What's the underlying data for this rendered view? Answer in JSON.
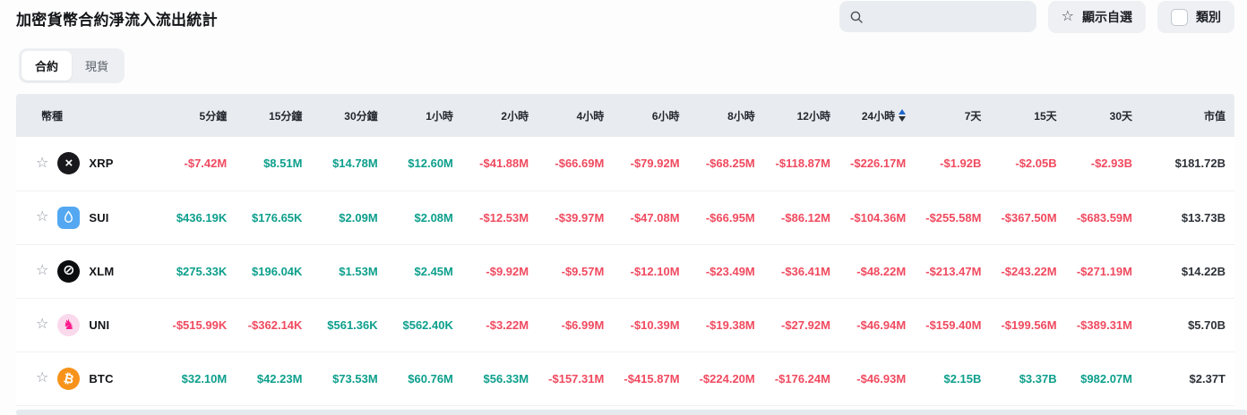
{
  "page": {
    "title": "加密貨幣合約淨流入流出統計"
  },
  "tabs": [
    {
      "label": "合約",
      "active": true
    },
    {
      "label": "現貨",
      "active": false
    }
  ],
  "toolbar": {
    "search_placeholder": "",
    "search_value": "",
    "search_icon": "search-icon",
    "favorites_button": {
      "icon": "star-icon",
      "label": "顯示自選"
    },
    "category_button": {
      "icon": "checkbox",
      "label": "類別",
      "checked": false
    }
  },
  "colors": {
    "positive": "#0d9f8c",
    "negative": "#f04a5f",
    "sort_active": "#1f66cc"
  },
  "table": {
    "columns": [
      "幣種",
      "5分鐘",
      "15分鐘",
      "30分鐘",
      "1小時",
      "2小時",
      "4小時",
      "6小時",
      "8小時",
      "12小時",
      "24小時",
      "7天",
      "15天",
      "30天",
      "市值"
    ],
    "sorted_column": "24小時",
    "sorted_column_index": 10,
    "rows": [
      {
        "symbol": "XRP",
        "logo": {
          "icon": "xrp-logo-icon",
          "bg": "#19191d",
          "shape": "circle"
        },
        "values": [
          "-$7.42M",
          "$8.51M",
          "$14.78M",
          "$12.60M",
          "-$41.88M",
          "-$66.69M",
          "-$79.92M",
          "-$68.25M",
          "-$118.87M",
          "-$226.17M",
          "-$1.92B",
          "-$2.05B",
          "-$2.93B"
        ],
        "market_cap": "$181.72B"
      },
      {
        "symbol": "SUI",
        "logo": {
          "icon": "sui-logo-icon",
          "bg": "#54a8f2",
          "shape": "square"
        },
        "values": [
          "$436.19K",
          "$176.65K",
          "$2.09M",
          "$2.08M",
          "-$12.53M",
          "-$39.97M",
          "-$47.08M",
          "-$66.95M",
          "-$86.12M",
          "-$104.36M",
          "-$255.58M",
          "-$367.50M",
          "-$683.59M"
        ],
        "market_cap": "$13.73B"
      },
      {
        "symbol": "XLM",
        "logo": {
          "icon": "xlm-logo-icon",
          "bg": "#0c0d0f",
          "shape": "circle"
        },
        "values": [
          "$275.33K",
          "$196.04K",
          "$1.53M",
          "$2.45M",
          "-$9.92M",
          "-$9.57M",
          "-$12.10M",
          "-$23.49M",
          "-$36.41M",
          "-$48.22M",
          "-$213.47M",
          "-$243.22M",
          "-$271.19M"
        ],
        "market_cap": "$14.22B"
      },
      {
        "symbol": "UNI",
        "logo": {
          "icon": "uni-logo-icon",
          "bg": "#fbd9ec",
          "shape": "circle"
        },
        "values": [
          "-$515.99K",
          "-$362.14K",
          "$561.36K",
          "$562.40K",
          "-$3.22M",
          "-$6.99M",
          "-$10.39M",
          "-$19.38M",
          "-$27.92M",
          "-$46.94M",
          "-$159.40M",
          "-$199.56M",
          "-$389.31M"
        ],
        "market_cap": "$5.70B"
      },
      {
        "symbol": "BTC",
        "logo": {
          "icon": "btc-logo-icon",
          "bg": "#f7931a",
          "shape": "circle"
        },
        "values": [
          "$32.10M",
          "$42.23M",
          "$73.53M",
          "$60.76M",
          "$56.33M",
          "-$157.31M",
          "-$415.87M",
          "-$224.20M",
          "-$176.24M",
          "-$46.93M",
          "$2.15B",
          "$3.37B",
          "$982.07M"
        ],
        "market_cap": "$2.37T"
      }
    ]
  }
}
